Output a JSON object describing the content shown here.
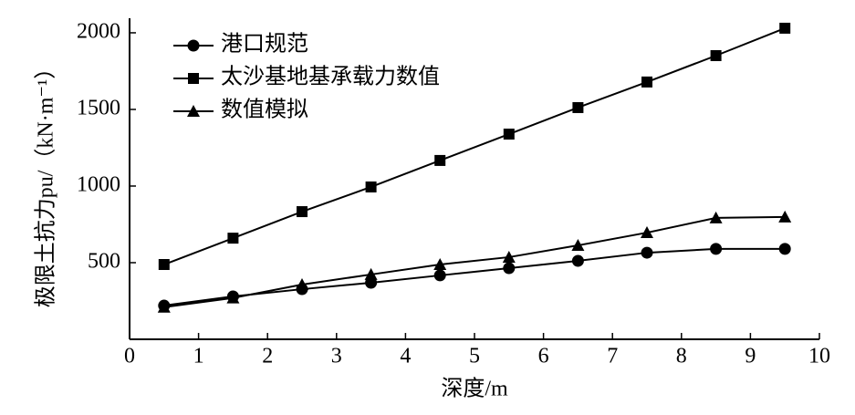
{
  "chart_data": {
    "type": "line",
    "xlabel": "深度/m",
    "ylabel": "极限土抗力pu/（kN·m⁻¹）",
    "x": [
      0.5,
      1.5,
      2.5,
      3.5,
      4.5,
      5.5,
      6.5,
      7.5,
      8.5,
      9.5
    ],
    "series": [
      {
        "name": "港口规范",
        "color": "#000000",
        "marker": "circle",
        "values": [
          220,
          280,
          327,
          369,
          417,
          464,
          512,
          565,
          590,
          590
        ]
      },
      {
        "name": "太沙基地基承载力数值",
        "color": "#000000",
        "marker": "square",
        "values": [
          488,
          660,
          833,
          994,
          1167,
          1339,
          1512,
          1679,
          1851,
          2030
        ]
      },
      {
        "name": "数值模拟",
        "color": "#000000",
        "marker": "triangle",
        "values": [
          210,
          270,
          357,
          423,
          488,
          536,
          613,
          696,
          792,
          798
        ]
      }
    ],
    "xlim": [
      0,
      10
    ],
    "xticks": [
      0,
      1,
      2,
      3,
      4,
      5,
      6,
      7,
      8,
      9,
      10
    ],
    "ylim": [
      0,
      2095
    ],
    "yticks": [
      500,
      1000,
      1500,
      2000
    ],
    "grid": false,
    "legend": "upper left"
  }
}
